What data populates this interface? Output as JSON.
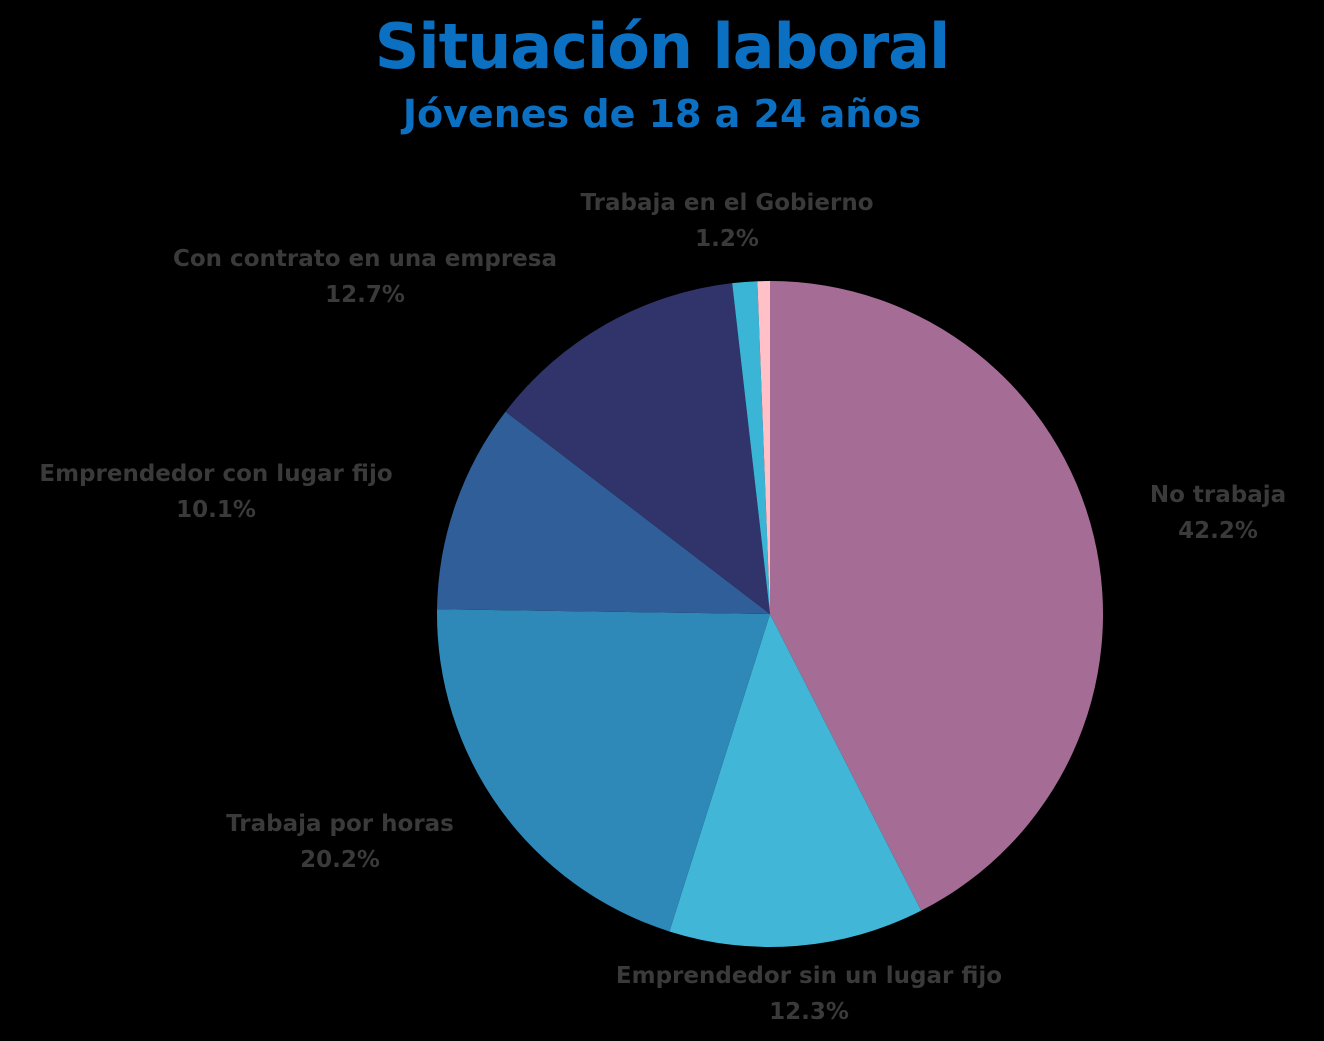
{
  "chart_data": {
    "type": "pie",
    "title": "Situación laboral",
    "subtitle": "Jóvenes de 18 a 24 años",
    "start": "top",
    "direction": "clockwise",
    "slices": [
      {
        "label": "No trabaja",
        "value": 42.2,
        "value_label": "42.2%",
        "color": "#a56c96"
      },
      {
        "label": "Emprendedor sin un lugar fijo",
        "value": 12.3,
        "value_label": "12.3%",
        "color": "#42b6d6"
      },
      {
        "label": "Trabaja por horas",
        "value": 20.2,
        "value_label": "20.2%",
        "color": "#2e89b9"
      },
      {
        "label": "Emprendedor con lugar fijo",
        "value": 10.1,
        "value_label": "10.1%",
        "color": "#2f5e98"
      },
      {
        "label": "Con contrato en una empresa",
        "value": 12.7,
        "value_label": "12.7%",
        "color": "#30346b"
      },
      {
        "label": "Trabaja en el Gobierno",
        "value": 1.2,
        "value_label": "1.2%",
        "color": "#3ab5d6"
      },
      {
        "label": "",
        "value": 0.6,
        "value_label": "",
        "color": "#ffc0c8"
      }
    ]
  }
}
